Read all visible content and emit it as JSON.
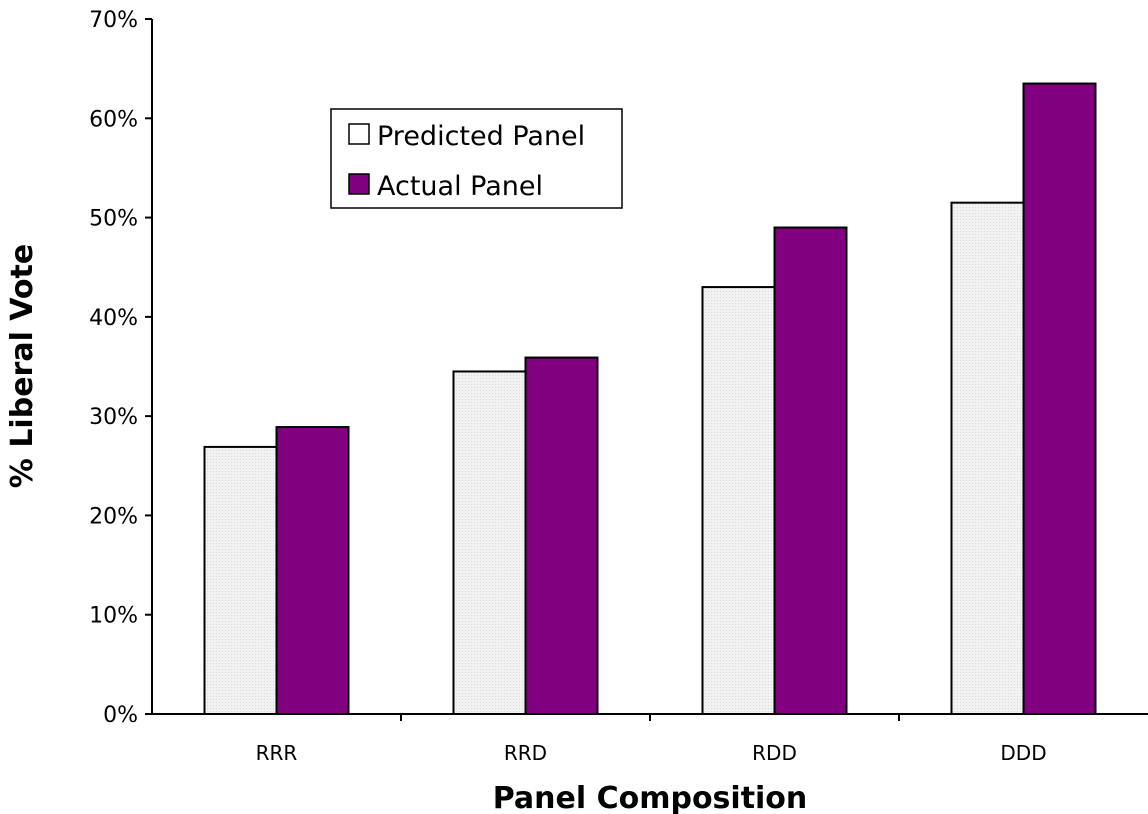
{
  "chart_data": {
    "type": "bar",
    "title": "",
    "xlabel": "Panel Composition",
    "ylabel": "% Liberal Vote",
    "categories": [
      "RRR",
      "RRD",
      "RDD",
      "DDD"
    ],
    "series": [
      {
        "name": "Predicted Panel",
        "values": [
          26.9,
          34.5,
          43.0,
          51.5
        ],
        "color": "#f0f0f0"
      },
      {
        "name": "Actual Panel",
        "values": [
          28.9,
          35.9,
          49.0,
          63.5
        ],
        "color": "#800080"
      }
    ],
    "ylim": [
      0,
      70
    ],
    "yticks": [
      0,
      10,
      20,
      30,
      40,
      50,
      60,
      70
    ],
    "ytick_labels": [
      "0%",
      "10%",
      "20%",
      "30%",
      "40%",
      "50%",
      "60%",
      "70%"
    ],
    "grid": false,
    "legend_position": "top-left"
  }
}
